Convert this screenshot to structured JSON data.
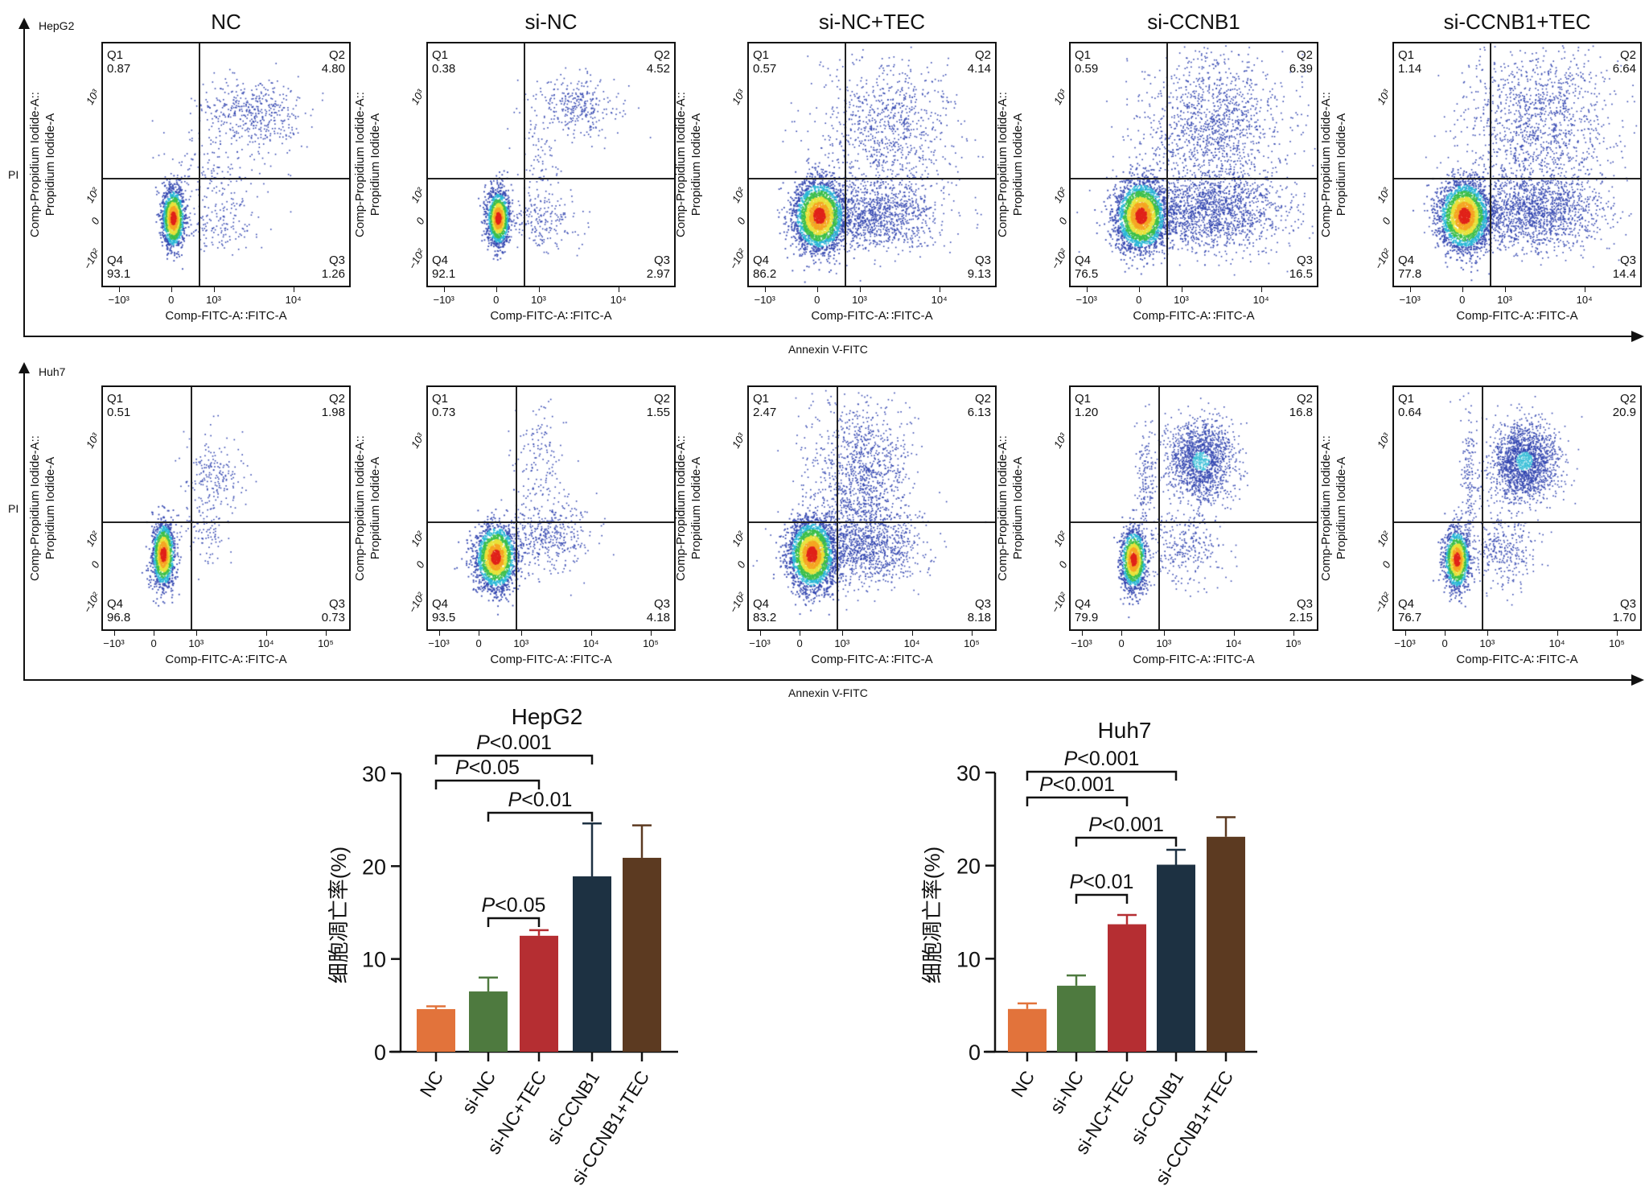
{
  "flow": {
    "column_titles": [
      "NC",
      "si-NC",
      "si-NC+TEC",
      "si-CCNB1",
      "si-CCNB1+TEC"
    ],
    "x_axis_label": "Annexin V-FITC",
    "y_axis_label": "PI",
    "plot_xlabel": "Comp-FITC-A∷FITC-A",
    "plot_ylabel_line1": "Comp-Propidium Iodide-A::",
    "plot_ylabel_line2": "Propidium Iodide-A",
    "quadrant_names": [
      "Q1",
      "Q2",
      "Q3",
      "Q4"
    ],
    "y_ticks": [
      "10³",
      "10²",
      "0",
      "−10²"
    ],
    "rows": [
      {
        "cell_line": "HepG2",
        "x_ticks": [
          "−10³",
          "0",
          "10³",
          "10⁴"
        ],
        "plots": [
          {
            "q1": "0.87",
            "q2": "4.80",
            "q3": "1.26",
            "q4": "93.1"
          },
          {
            "q1": "0.38",
            "q2": "4.52",
            "q3": "2.97",
            "q4": "92.1"
          },
          {
            "q1": "0.57",
            "q2": "4.14",
            "q3": "9.13",
            "q4": "86.2"
          },
          {
            "q1": "0.59",
            "q2": "6.39",
            "q3": "16.5",
            "q4": "76.5"
          },
          {
            "q1": "1.14",
            "q2": "6.64",
            "q3": "14.4",
            "q4": "77.8"
          }
        ]
      },
      {
        "cell_line": "Huh7",
        "x_ticks": [
          "−10³",
          "0",
          "10³",
          "10⁴",
          "10⁵"
        ],
        "plots": [
          {
            "q1": "0.51",
            "q2": "1.98",
            "q3": "0.73",
            "q4": "96.8"
          },
          {
            "q1": "0.73",
            "q2": "1.55",
            "q3": "4.18",
            "q4": "93.5"
          },
          {
            "q1": "2.47",
            "q2": "6.13",
            "q3": "8.18",
            "q4": "83.2"
          },
          {
            "q1": "1.20",
            "q2": "16.8",
            "q3": "2.15",
            "q4": "79.9"
          },
          {
            "q1": "0.64",
            "q2": "20.9",
            "q3": "1.70",
            "q4": "76.7"
          }
        ]
      }
    ]
  },
  "chart_data": [
    {
      "type": "bar",
      "title": "HepG2",
      "ylabel": "细胞凋亡率(%)",
      "xlabel": "",
      "ylim": [
        0,
        30
      ],
      "yticks": [
        0,
        10,
        20,
        30
      ],
      "categories": [
        "NC",
        "si-NC",
        "si-NC+TEC",
        "si-CCNB1",
        "si-CCNB1+TEC"
      ],
      "values": [
        4.6,
        6.5,
        12.5,
        18.9,
        20.9
      ],
      "error_upper": [
        4.9,
        8.0,
        13.1,
        24.6,
        24.4
      ],
      "colors": [
        "#E2733B",
        "#4E7A3F",
        "#B52E32",
        "#1D3142",
        "#5C3A21"
      ],
      "comparisons": [
        {
          "from": "NC",
          "to": "si-CCNB1",
          "p_symbol": "P",
          "p_text": "<0.001"
        },
        {
          "from": "NC",
          "to": "si-NC+TEC",
          "p_symbol": "P",
          "p_text": "<0.05"
        },
        {
          "from": "si-NC",
          "to": "si-CCNB1",
          "p_symbol": "P",
          "p_text": "<0.01"
        },
        {
          "from": "si-NC",
          "to": "si-NC+TEC",
          "p_symbol": "P",
          "p_text": "<0.05"
        }
      ]
    },
    {
      "type": "bar",
      "title": "Huh7",
      "ylabel": "细胞凋亡率(%)",
      "xlabel": "",
      "ylim": [
        0,
        30
      ],
      "yticks": [
        0,
        10,
        20,
        30
      ],
      "categories": [
        "NC",
        "si-NC",
        "si-NC+TEC",
        "si-CCNB1",
        "si-CCNB1+TEC"
      ],
      "values": [
        4.6,
        7.1,
        13.7,
        20.1,
        23.1
      ],
      "error_upper": [
        5.2,
        8.2,
        14.7,
        21.7,
        25.2
      ],
      "colors": [
        "#E2733B",
        "#4E7A3F",
        "#B52E32",
        "#1D3142",
        "#5C3A21"
      ],
      "comparisons": [
        {
          "from": "NC",
          "to": "si-CCNB1",
          "p_symbol": "P",
          "p_text": "<0.001"
        },
        {
          "from": "NC",
          "to": "si-NC+TEC",
          "p_symbol": "P",
          "p_text": "<0.001"
        },
        {
          "from": "si-NC",
          "to": "si-CCNB1",
          "p_symbol": "P",
          "p_text": "<0.001"
        },
        {
          "from": "si-NC",
          "to": "si-NC+TEC",
          "p_symbol": "P",
          "p_text": "<0.01"
        }
      ]
    }
  ]
}
